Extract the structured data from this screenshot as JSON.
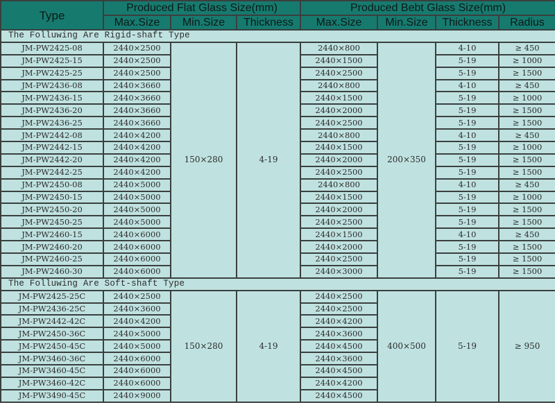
{
  "colors": {
    "header_bg": "#177a6f",
    "cell_bg": "#bfe2e0",
    "border": "#3a3f3e"
  },
  "header": {
    "type": "Type",
    "flat_group": "Produced Flat Glass Size(mm)",
    "bent_group": "Produced Bebt Glass Size(mm)",
    "flat_max": "Max.Size",
    "flat_min": "Min.Size",
    "flat_thickness": "Thickness",
    "bent_max": "Max.Size",
    "bent_min": "Min.Size",
    "bent_thickness": "Thickness",
    "bent_radius": "Radius"
  },
  "rigid": {
    "section_label": "The Folluwing Are Rigid-shaft Type",
    "flat_min": "150×280",
    "flat_thickness": "4-19",
    "bent_min": "200×350",
    "rows": [
      {
        "type": "JM-PW2425-08",
        "flat_max": "2440×2500",
        "bent_max": "2440×800",
        "thickness": "4-10",
        "radius": "≥ 450"
      },
      {
        "type": "JM-PW2425-15",
        "flat_max": "2440×2500",
        "bent_max": "2440×1500",
        "thickness": "5-19",
        "radius": "≥ 1000"
      },
      {
        "type": "JM-PW2425-25",
        "flat_max": "2440×2500",
        "bent_max": "2440×2500",
        "thickness": "5-19",
        "radius": "≥ 1500"
      },
      {
        "type": "JM-PW2436-08",
        "flat_max": "2440×3660",
        "bent_max": "2440×800",
        "thickness": "4-10",
        "radius": "≥ 450"
      },
      {
        "type": "JM-PW2436-15",
        "flat_max": "2440×3660",
        "bent_max": "2440×1500",
        "thickness": "5-19",
        "radius": "≥ 1000"
      },
      {
        "type": "JM-PW2436-20",
        "flat_max": "2440×3660",
        "bent_max": "2440×2000",
        "thickness": "5-19",
        "radius": "≥ 1500"
      },
      {
        "type": "JM-PW2436-25",
        "flat_max": "2440×3660",
        "bent_max": "2440×2500",
        "thickness": "5-19",
        "radius": "≥ 1500"
      },
      {
        "type": "JM-PW2442-08",
        "flat_max": "2440×4200",
        "bent_max": "2440×800",
        "thickness": "4-10",
        "radius": "≥ 450"
      },
      {
        "type": "JM-PW2442-15",
        "flat_max": "2440×4200",
        "bent_max": "2440×1500",
        "thickness": "5-19",
        "radius": "≥ 1000"
      },
      {
        "type": "JM-PW2442-20",
        "flat_max": "2440×4200",
        "bent_max": "2440×2000",
        "thickness": "5-19",
        "radius": "≥ 1500"
      },
      {
        "type": "JM-PW2442-25",
        "flat_max": "2440×4200",
        "bent_max": "2440×2500",
        "thickness": "5-19",
        "radius": "≥ 1500"
      },
      {
        "type": "JM-PW2450-08",
        "flat_max": "2440×5000",
        "bent_max": "2440×800",
        "thickness": "4-10",
        "radius": "≥ 450"
      },
      {
        "type": "JM-PW2450-15",
        "flat_max": "2440×5000",
        "bent_max": "2440×1500",
        "thickness": "5-19",
        "radius": "≥ 1000"
      },
      {
        "type": "JM-PW2450-20",
        "flat_max": "2440×5000",
        "bent_max": "2440×2000",
        "thickness": "5-19",
        "radius": "≥ 1500"
      },
      {
        "type": "JM-PW2450-25",
        "flat_max": "2440×5000",
        "bent_max": "2440×2500",
        "thickness": "5-19",
        "radius": "≥ 1500"
      },
      {
        "type": "JM-PW2460-15",
        "flat_max": "2440×6000",
        "bent_max": "2440×1500",
        "thickness": "4-10",
        "radius": "≥ 450"
      },
      {
        "type": "JM-PW2460-20",
        "flat_max": "2440×6000",
        "bent_max": "2440×2000",
        "thickness": "5-19",
        "radius": "≥ 1500"
      },
      {
        "type": "JM-PW2460-25",
        "flat_max": "2440×6000",
        "bent_max": "2440×2500",
        "thickness": "5-19",
        "radius": "≥ 1500"
      },
      {
        "type": "JM-PW2460-30",
        "flat_max": "2440×6000",
        "bent_max": "2440×3000",
        "thickness": "5-19",
        "radius": "≥ 1500"
      }
    ]
  },
  "soft": {
    "section_label": "The Folluwing Are Soft-shaft Type",
    "flat_min": "150×280",
    "flat_thickness": "4-19",
    "bent_min": "400×500",
    "bent_thickness": "5-19",
    "bent_radius": "≥ 950",
    "rows": [
      {
        "type": "JM-PW2425-25C",
        "flat_max": "2440×2500",
        "bent_max": "2440×2500"
      },
      {
        "type": "JM-PW2436-25C",
        "flat_max": "2440×3600",
        "bent_max": "2440×2500"
      },
      {
        "type": "JM-PW2442-42C",
        "flat_max": "2440×4200",
        "bent_max": "2440×4200"
      },
      {
        "type": "JM-PW2450-36C",
        "flat_max": "2440×5000",
        "bent_max": "2440×3600"
      },
      {
        "type": "JM-PW2450-45C",
        "flat_max": "2440×5000",
        "bent_max": "2440×4500"
      },
      {
        "type": "JM-PW3460-36C",
        "flat_max": "2440×6000",
        "bent_max": "2440×3600"
      },
      {
        "type": "JM-PW3460-45C",
        "flat_max": "2440×6000",
        "bent_max": "2440×4500"
      },
      {
        "type": "JM-PW3460-42C",
        "flat_max": "2440×6000",
        "bent_max": "2440×4200"
      },
      {
        "type": "JM-PW3490-45C",
        "flat_max": "2440×9000",
        "bent_max": "2440×4500"
      }
    ]
  }
}
